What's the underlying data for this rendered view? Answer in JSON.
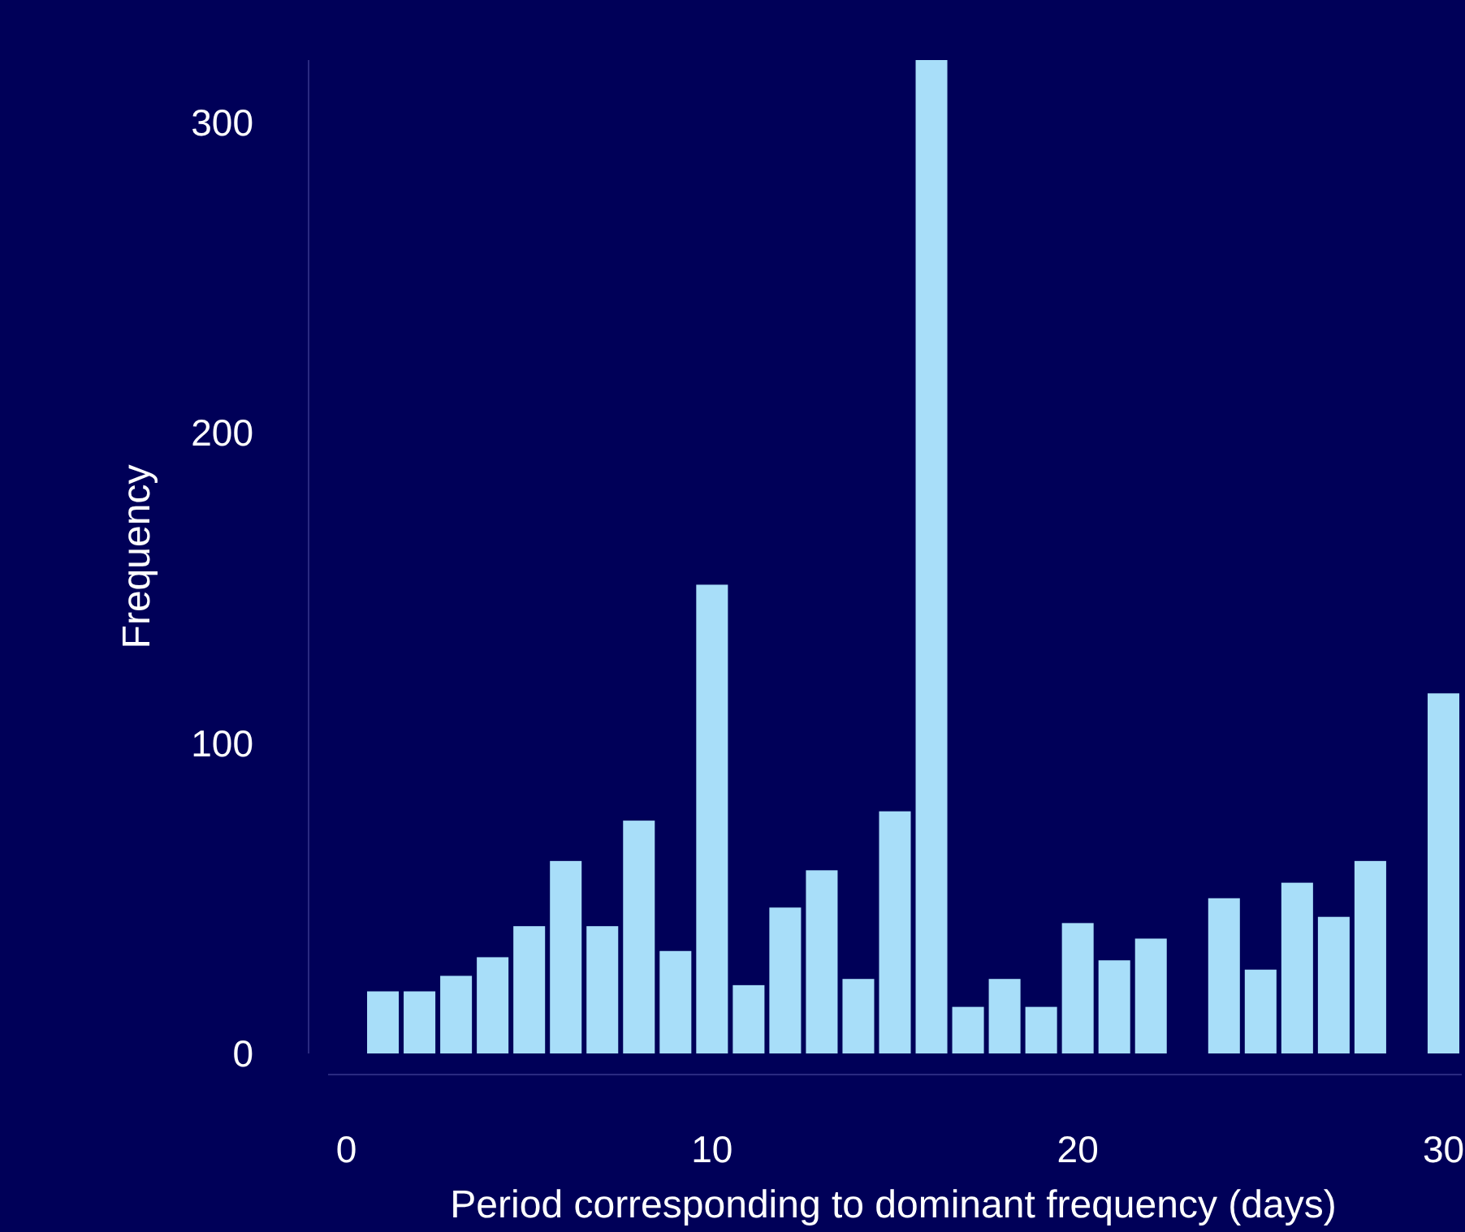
{
  "chart_data": {
    "type": "histogram",
    "xlabel": "Period corresponding to dominant frequency (days)",
    "ylabel": "Frequency",
    "bins": [
      -0.5,
      0.5,
      1.5,
      2.5,
      3.5,
      4.5,
      5.5,
      6.5,
      7.5,
      8.5,
      9.5,
      10.5,
      11.5,
      12.5,
      13.5,
      14.5,
      15.5,
      16.5,
      17.5,
      18.5,
      19.5,
      20.5,
      21.5,
      22.5,
      23.5,
      24.5,
      25.5,
      26.5,
      27.5,
      28.5,
      29.5,
      30.5
    ],
    "values": [
      0,
      20,
      20,
      25,
      31,
      41,
      62,
      41,
      75,
      33,
      151,
      22,
      47,
      59,
      24,
      78,
      320,
      15,
      24,
      15,
      42,
      30,
      37,
      0,
      50,
      27,
      55,
      44,
      62,
      0,
      116
    ],
    "color": "#a8def9",
    "xlim": [
      -0.5,
      30.5
    ],
    "xticks": [
      0,
      10,
      20,
      30
    ],
    "ylim": [
      0,
      320
    ],
    "yticks": [
      0,
      100,
      200,
      300
    ],
    "grid": false
  }
}
